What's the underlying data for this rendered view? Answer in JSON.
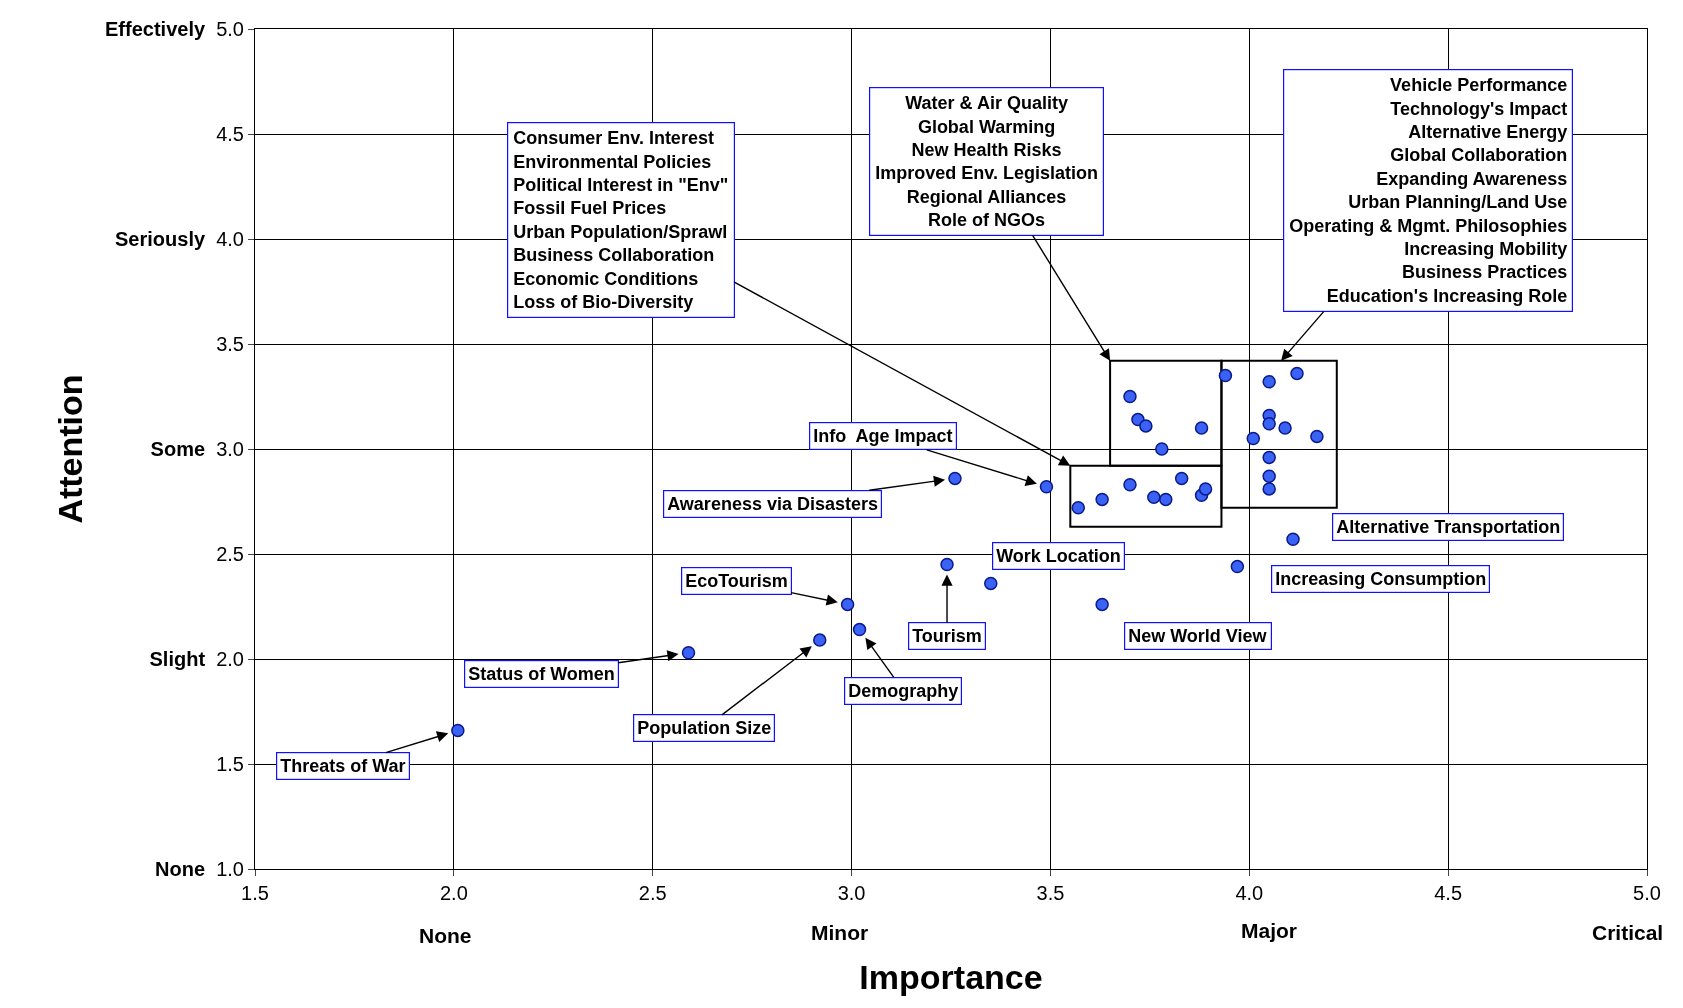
{
  "chart_data": {
    "type": "scatter",
    "xlabel": "Importance",
    "ylabel": "Attention",
    "x": [
      2.01,
      2.59,
      2.92,
      2.99,
      3.02,
      3.24,
      3.35,
      3.26,
      3.49,
      3.63,
      3.97,
      4.11,
      3.57,
      3.63,
      3.7,
      3.76,
      3.79,
      3.83,
      3.88,
      3.89,
      3.7,
      3.72,
      3.74,
      3.78,
      3.88,
      3.94,
      4.05,
      4.12,
      4.05,
      4.05,
      4.09,
      4.01,
      4.17,
      4.05,
      4.05,
      4.05
    ],
    "values": [
      1.66,
      2.03,
      2.09,
      2.26,
      2.14,
      2.45,
      2.36,
      2.86,
      2.82,
      2.26,
      2.44,
      2.57,
      2.72,
      2.76,
      2.83,
      2.77,
      2.76,
      2.86,
      2.78,
      2.81,
      3.25,
      3.14,
      3.11,
      3.0,
      3.1,
      3.35,
      3.32,
      3.36,
      3.16,
      3.12,
      3.1,
      3.05,
      3.06,
      2.96,
      2.87,
      2.81
    ],
    "color": "#3a62f5",
    "marker": "circle",
    "grid": true,
    "xlim": [
      1.5,
      5.0
    ],
    "xticks": [
      1.5,
      {
        "value": 2,
        "label": "2.0"
      },
      2.5,
      {
        "value": 3,
        "label": "3.0"
      },
      3.5,
      {
        "value": 4,
        "label": "4.0"
      },
      4.5,
      {
        "value": 5,
        "label": "5.0"
      }
    ],
    "ylim": [
      1.0,
      5.0
    ],
    "yticks": [
      {
        "value": 1.0,
        "label": "None 1.0"
      },
      1.5,
      {
        "value": 2.0,
        "label": "Slight 2.0"
      },
      2.5,
      {
        "value": 3.0,
        "label": "Some 3.0"
      },
      3.5,
      {
        "value": 4.0,
        "label": "Seriously 4.0"
      },
      4.5,
      {
        "value": 5.0,
        "label": "Effectively 5.0"
      }
    ],
    "annotations": [
      {
        "text": "Threats of War",
        "x": 2.01,
        "y": 1.66
      },
      {
        "text": "Status of Women",
        "x": 2.59,
        "y": 2.03
      },
      {
        "text": "Population Size",
        "x": 2.92,
        "y": 2.09
      },
      {
        "text": "EcoTourism",
        "x": 2.99,
        "y": 2.26
      },
      {
        "text": "Demography",
        "x": 3.02,
        "y": 2.14
      },
      {
        "text": "Tourism",
        "x": 3.24,
        "y": 2.45
      },
      {
        "text": "Awareness via Disasters",
        "x": 3.26,
        "y": 2.86
      },
      {
        "text": "Info  Age Impact",
        "x": 3.49,
        "y": 2.82
      },
      "Work Location",
      "New World View",
      "Increasing Consumption",
      "Alternative Transportation",
      "Consumer Env. Interest\nEnvironmental Policies\nPolitical Interest in \"Env\"\nFossil Fuel Prices\nUrban Population/Sprawl\nBusiness Collaboration\nEconomic Conditions\nLoss of Bio-Diversity",
      "Water & Air Quality\nGlobal Warming\nNew Health Risks\nImproved Env. Legislation\nRegional Alliances\nRole of NGOs",
      "Vehicle Performance\nTechnology's Impact\nAlternative Energy\nGlobal Collaboration\nExpanding Awareness\nUrban Planning/Land Use\nOperating & Mgmt. Philosophies\nIncreasing Mobility\nBusiness Practices\nEducation's Increasing Role",
      "None",
      "Minor",
      "Major",
      "Critical"
    ]
  }
}
